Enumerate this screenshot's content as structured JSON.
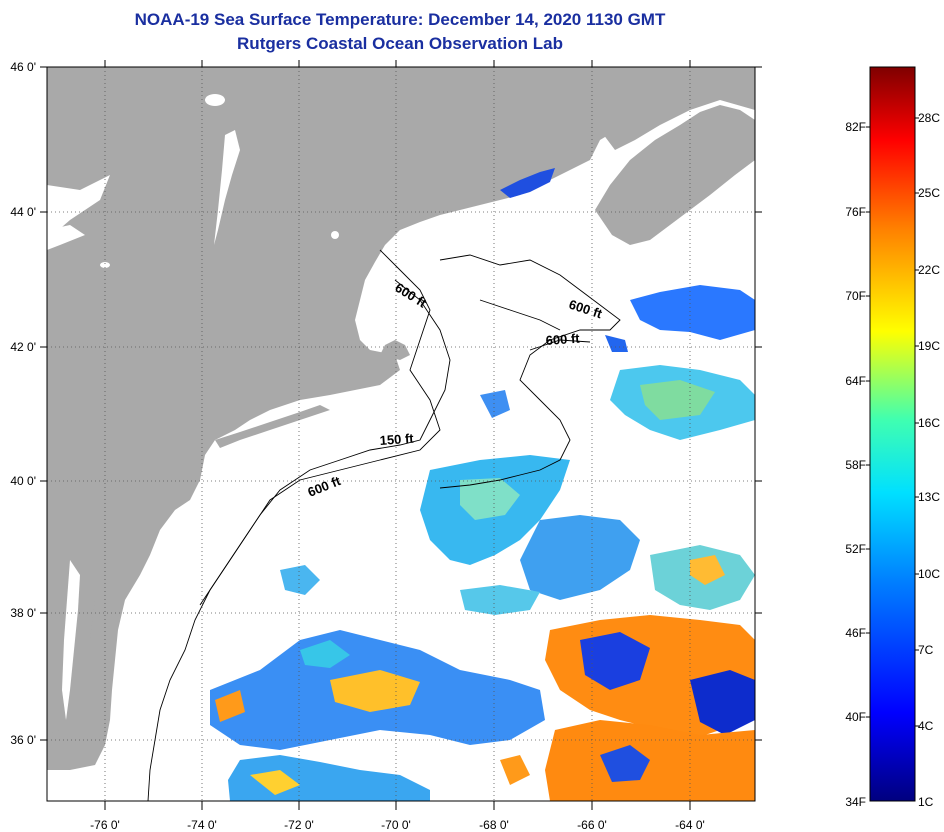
{
  "title": {
    "line1": "NOAA-19 Sea Surface Temperature:  December 14, 2020 1130 GMT",
    "line2": "Rutgers Coastal Ocean Observation Lab"
  },
  "map": {
    "lat_labels": [
      "46 0'",
      "44 0'",
      "42 0'",
      "40 0'",
      "38 0'",
      "36 0'"
    ],
    "lon_labels": [
      "-76 0'",
      "-74 0'",
      "-72 0'",
      "-70 0'",
      "-68 0'",
      "-66 0'",
      "-64 0'"
    ],
    "contour_labels": [
      "600 ft",
      "600 ft",
      "600 ft",
      "150 ft",
      "600 ft"
    ],
    "colors": {
      "land": "#a9a9a9",
      "water_no_data": "#ffffff",
      "grid": "#333333",
      "title": "#1a2fa0"
    }
  },
  "colorbar": {
    "fahrenheit_labels": [
      "82F",
      "76F",
      "70F",
      "64F",
      "58F",
      "52F",
      "46F",
      "40F",
      "34F"
    ],
    "celsius_labels": [
      "28C",
      "25C",
      "22C",
      "19C",
      "16C",
      "13C",
      "10C",
      "7C",
      "4C",
      "1C"
    ],
    "range_f": [
      34,
      88
    ],
    "gradient": [
      "#00007f",
      "#0000ff",
      "#0080ff",
      "#00e0ff",
      "#40ffb0",
      "#ffff00",
      "#ff8000",
      "#ff0000",
      "#7f0000"
    ]
  }
}
